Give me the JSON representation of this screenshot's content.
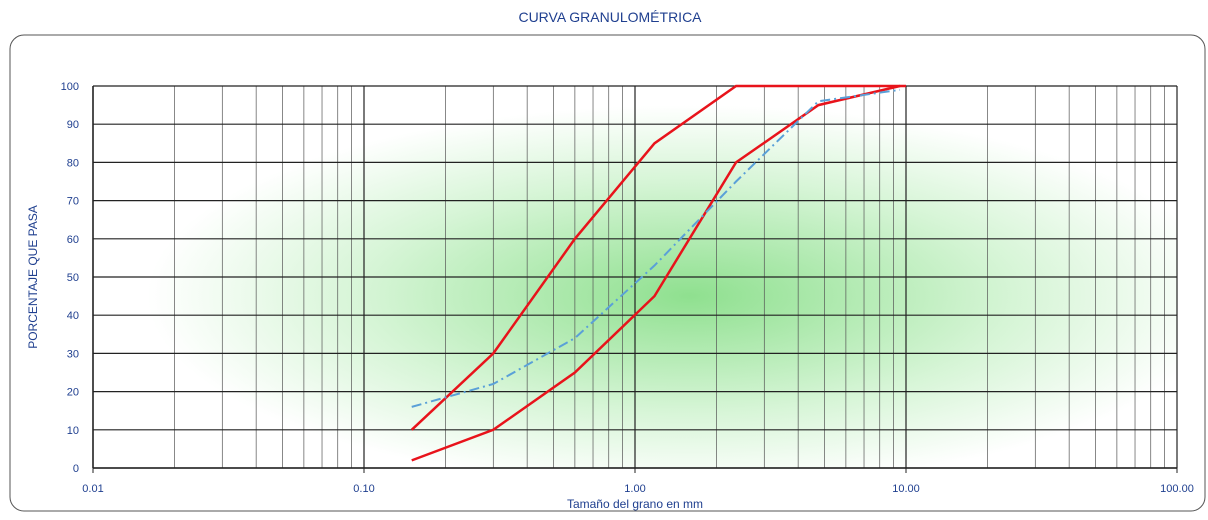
{
  "chart_data": {
    "type": "line",
    "title": "CURVA GRANULOMÉTRICA",
    "xlabel": "Tamaño del grano en mm",
    "ylabel": "PORCENTAJE QUE PASA",
    "xscale": "log",
    "grid": true,
    "xlim": [
      0.01,
      100
    ],
    "ylim": [
      0,
      100
    ],
    "xticks": [
      {
        "value": 0.01,
        "label": "0.01"
      },
      {
        "value": 0.1,
        "label": "0.10"
      },
      {
        "value": 1,
        "label": "1.00"
      },
      {
        "value": 10,
        "label": "10.00"
      },
      {
        "value": 100,
        "label": "100.00"
      }
    ],
    "xminorticks": [
      0.02,
      0.03,
      0.04,
      0.05,
      0.06,
      0.07,
      0.08,
      0.09,
      0.2,
      0.3,
      0.4,
      0.5,
      0.6,
      0.7,
      0.8,
      0.9,
      2,
      3,
      4,
      5,
      6,
      7,
      8,
      9,
      20,
      30,
      40,
      50,
      60,
      70,
      80,
      90
    ],
    "yticks": [
      0,
      10,
      20,
      30,
      40,
      50,
      60,
      70,
      80,
      90,
      100
    ],
    "series": [
      {
        "color": "#e8131b",
        "style": "solid",
        "x": [
          0.15,
          0.3,
          0.6,
          1.18,
          2.36,
          4.75,
          10
        ],
        "values": [
          10,
          30,
          60,
          85,
          100,
          100,
          100
        ]
      },
      {
        "color": "#e8131b",
        "style": "solid",
        "x": [
          0.15,
          0.3,
          0.6,
          1.18,
          2.36,
          4.75,
          9.5
        ],
        "values": [
          2,
          10,
          25,
          45,
          80,
          95,
          100
        ]
      },
      {
        "color": "#5aa0d8",
        "style": "dashdot",
        "x": [
          0.15,
          0.3,
          0.6,
          1.18,
          2.36,
          4.75,
          9.5
        ],
        "values": [
          16,
          22,
          34,
          53,
          75,
          96,
          99
        ]
      }
    ]
  }
}
